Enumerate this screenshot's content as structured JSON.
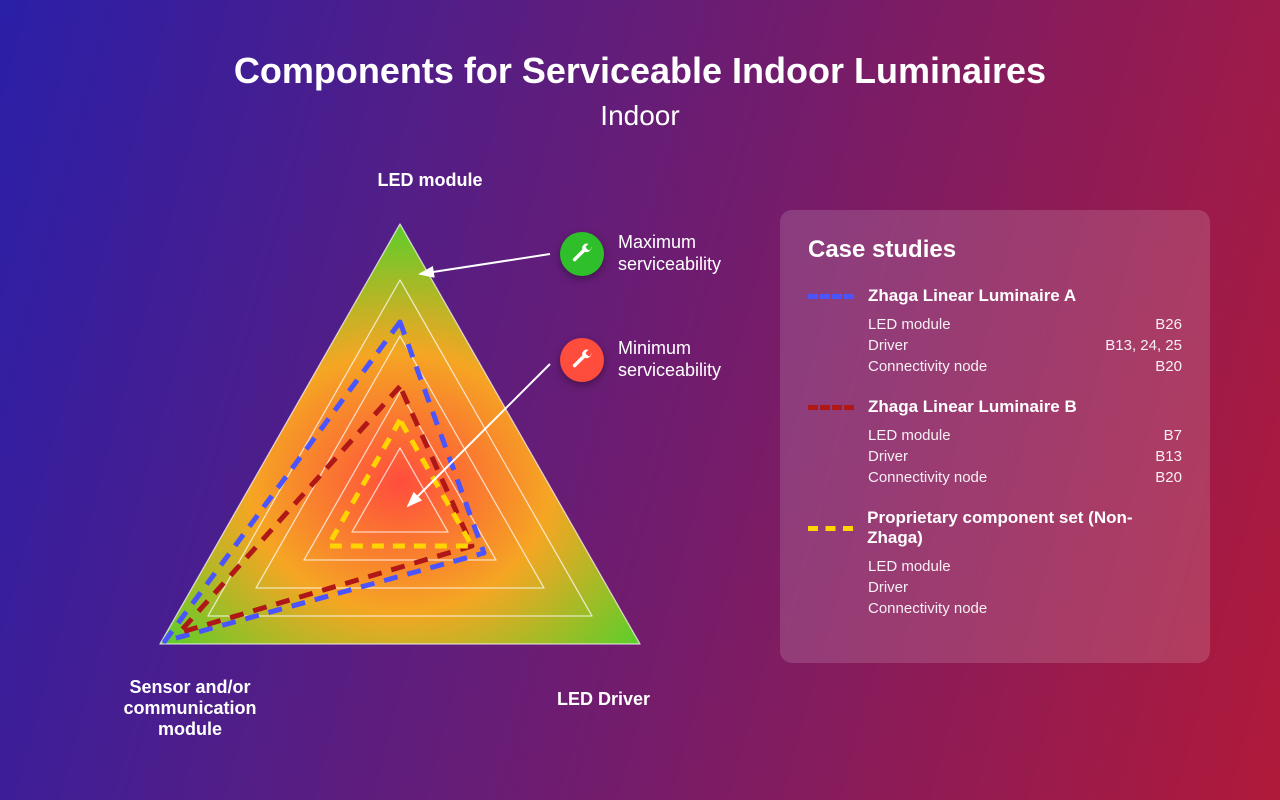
{
  "background": {
    "gradient_from": "#2a1fa8",
    "gradient_to": "#b01a3a",
    "gradient_angle_deg": 105
  },
  "header": {
    "title": "Components for Serviceable Indoor Luminaires",
    "subtitle": "Indoor"
  },
  "chart": {
    "type": "radar-triangle",
    "axes": {
      "top": "LED module",
      "bottom_left": "Sensor and/or communication module",
      "bottom_right": "LED Driver"
    },
    "gradient": {
      "outer_color": "#3bd62c",
      "mid_color": "#f5a623",
      "inner_color": "#ff4d3d"
    },
    "ring_levels": [
      1.0,
      0.8,
      0.6,
      0.4,
      0.2
    ],
    "ring_stroke": "#ffffff",
    "ring_stroke_opacity": 0.7,
    "ring_stroke_width": 1.3,
    "legend": {
      "max": {
        "label": "Maximum serviceability",
        "icon_bg": "#2fbf2a"
      },
      "min": {
        "label": "Minimum serviceability",
        "icon_bg": "#ff4d3d"
      }
    },
    "series": [
      {
        "name": "Zhaga Linear Luminaire A",
        "color": "#4a54ff",
        "dash": "14 10",
        "width": 5,
        "values": {
          "top": 0.65,
          "bottom_left": 0.98,
          "bottom_right": 0.35
        }
      },
      {
        "name": "Zhaga Linear Luminaire B",
        "color": "#b01818",
        "dash": "14 10",
        "width": 5,
        "values": {
          "top": 0.42,
          "bottom_left": 0.92,
          "bottom_right": 0.3
        }
      },
      {
        "name": "Proprietary component set (Non-Zhaga)",
        "color": "#ffd400",
        "dash": "12 9",
        "width": 5,
        "values": {
          "top": 0.3,
          "bottom_left": 0.3,
          "bottom_right": 0.3
        }
      }
    ]
  },
  "panel": {
    "title": "Case studies",
    "cases": [
      {
        "swatch_color": "#4a54ff",
        "title": "Zhaga Linear Luminaire A",
        "rows": [
          {
            "label": "LED module",
            "value": "B26"
          },
          {
            "label": "Driver",
            "value": "B13, 24, 25"
          },
          {
            "label": "Connectivity node",
            "value": "B20"
          }
        ]
      },
      {
        "swatch_color": "#b01818",
        "title": "Zhaga Linear Luminaire B",
        "rows": [
          {
            "label": "LED module",
            "value": "B7"
          },
          {
            "label": "Driver",
            "value": "B13"
          },
          {
            "label": "Connectivity node",
            "value": "B20"
          }
        ]
      },
      {
        "swatch_color": "#ffd400",
        "title": "Proprietary component set (Non-Zhaga)",
        "rows": [
          {
            "label": "LED module",
            "value": ""
          },
          {
            "label": "Driver",
            "value": ""
          },
          {
            "label": "Connectivity node",
            "value": ""
          }
        ]
      }
    ]
  }
}
